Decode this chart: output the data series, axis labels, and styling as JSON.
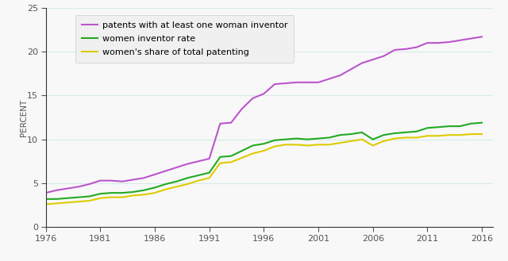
{
  "ylabel": "PERCENT",
  "xlim": [
    1976,
    2017
  ],
  "ylim": [
    0,
    25
  ],
  "yticks": [
    0,
    5,
    10,
    15,
    20,
    25
  ],
  "xticks": [
    1976,
    1981,
    1986,
    1991,
    1996,
    2001,
    2006,
    2011,
    2016
  ],
  "background_color": "#f8f8f8",
  "grid_color": "#d8eaea",
  "series": [
    {
      "label": "patents with at least one woman inventor",
      "color": "#bb55cc",
      "linewidth": 1.5,
      "data_x": [
        1976,
        1977,
        1978,
        1979,
        1980,
        1981,
        1982,
        1983,
        1984,
        1985,
        1986,
        1987,
        1988,
        1989,
        1990,
        1991,
        1992,
        1993,
        1994,
        1995,
        1996,
        1997,
        1998,
        1999,
        2000,
        2001,
        2002,
        2003,
        2004,
        2005,
        2006,
        2007,
        2008,
        2009,
        2010,
        2011,
        2012,
        2013,
        2014,
        2015,
        2016
      ],
      "data_y": [
        3.9,
        4.2,
        4.4,
        4.6,
        4.9,
        5.3,
        5.3,
        5.2,
        5.4,
        5.6,
        6.0,
        6.4,
        6.8,
        7.2,
        7.5,
        7.8,
        11.8,
        11.9,
        13.5,
        14.7,
        15.2,
        16.3,
        16.4,
        16.5,
        16.5,
        16.5,
        16.9,
        17.3,
        18.0,
        18.7,
        19.1,
        19.5,
        20.2,
        20.3,
        20.5,
        21.0,
        21.0,
        21.1,
        21.3,
        21.5,
        21.7
      ]
    },
    {
      "label": "women inventor rate",
      "color": "#22aa22",
      "linewidth": 1.5,
      "data_x": [
        1976,
        1977,
        1978,
        1979,
        1980,
        1981,
        1982,
        1983,
        1984,
        1985,
        1986,
        1987,
        1988,
        1989,
        1990,
        1991,
        1992,
        1993,
        1994,
        1995,
        1996,
        1997,
        1998,
        1999,
        2000,
        2001,
        2002,
        2003,
        2004,
        2005,
        2006,
        2007,
        2008,
        2009,
        2010,
        2011,
        2012,
        2013,
        2014,
        2015,
        2016
      ],
      "data_y": [
        3.2,
        3.2,
        3.3,
        3.4,
        3.5,
        3.8,
        3.9,
        3.9,
        4.0,
        4.2,
        4.5,
        4.9,
        5.2,
        5.6,
        5.9,
        6.2,
        8.0,
        8.1,
        8.7,
        9.3,
        9.5,
        9.9,
        10.0,
        10.1,
        10.0,
        10.1,
        10.2,
        10.5,
        10.6,
        10.8,
        10.0,
        10.5,
        10.7,
        10.8,
        10.9,
        11.3,
        11.4,
        11.5,
        11.5,
        11.8,
        11.9
      ]
    },
    {
      "label": "women's share of total patenting",
      "color": "#ddcc00",
      "linewidth": 1.5,
      "data_x": [
        1976,
        1977,
        1978,
        1979,
        1980,
        1981,
        1982,
        1983,
        1984,
        1985,
        1986,
        1987,
        1988,
        1989,
        1990,
        1991,
        1992,
        1993,
        1994,
        1995,
        1996,
        1997,
        1998,
        1999,
        2000,
        2001,
        2002,
        2003,
        2004,
        2005,
        2006,
        2007,
        2008,
        2009,
        2010,
        2011,
        2012,
        2013,
        2014,
        2015,
        2016
      ],
      "data_y": [
        2.6,
        2.7,
        2.8,
        2.9,
        3.0,
        3.3,
        3.4,
        3.4,
        3.6,
        3.7,
        3.9,
        4.3,
        4.6,
        4.9,
        5.3,
        5.6,
        7.3,
        7.4,
        7.9,
        8.4,
        8.7,
        9.2,
        9.4,
        9.4,
        9.3,
        9.4,
        9.4,
        9.6,
        9.8,
        10.0,
        9.3,
        9.8,
        10.1,
        10.2,
        10.2,
        10.4,
        10.4,
        10.5,
        10.5,
        10.6,
        10.6
      ]
    }
  ]
}
